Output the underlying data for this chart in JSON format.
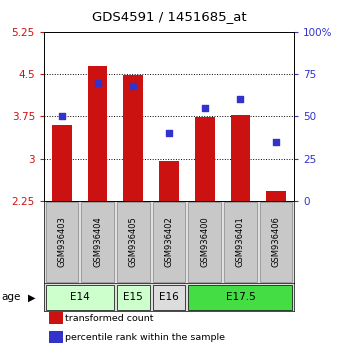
{
  "title": "GDS4591 / 1451685_at",
  "samples": [
    "GSM936403",
    "GSM936404",
    "GSM936405",
    "GSM936402",
    "GSM936400",
    "GSM936401",
    "GSM936406"
  ],
  "bar_values": [
    3.6,
    4.65,
    4.48,
    2.95,
    3.73,
    3.78,
    2.42
  ],
  "blue_right_values": [
    50,
    70,
    68,
    40,
    55,
    60,
    35
  ],
  "bar_bottom": 2.25,
  "ylim_left": [
    2.25,
    5.25
  ],
  "ylim_right": [
    0,
    100
  ],
  "yticks_left": [
    2.25,
    3.0,
    3.75,
    4.5,
    5.25
  ],
  "yticks_right": [
    0,
    25,
    50,
    75,
    100
  ],
  "ytick_labels_left": [
    "2.25",
    "3",
    "3.75",
    "4.5",
    "5.25"
  ],
  "ytick_labels_right": [
    "0",
    "25",
    "50",
    "75",
    "100%"
  ],
  "hlines": [
    3.0,
    3.75,
    4.5
  ],
  "bar_color": "#cc1111",
  "blue_color": "#3333cc",
  "age_groups": [
    {
      "label": "E14",
      "indices": [
        0,
        1
      ],
      "color": "#ccffcc"
    },
    {
      "label": "E15",
      "indices": [
        2
      ],
      "color": "#ccffcc"
    },
    {
      "label": "E16",
      "indices": [
        3
      ],
      "color": "#dddddd"
    },
    {
      "label": "E17.5",
      "indices": [
        4,
        5,
        6
      ],
      "color": "#44dd44"
    }
  ],
  "sample_box_color": "#c8c8c8",
  "sample_box_edge": "#888888",
  "legend_items": [
    {
      "label": "transformed count",
      "color": "#cc1111"
    },
    {
      "label": "percentile rank within the sample",
      "color": "#3333cc"
    }
  ],
  "background_color": "#ffffff",
  "tick_color_left": "#cc1111",
  "tick_color_right": "#3333cc",
  "bar_width": 0.55
}
